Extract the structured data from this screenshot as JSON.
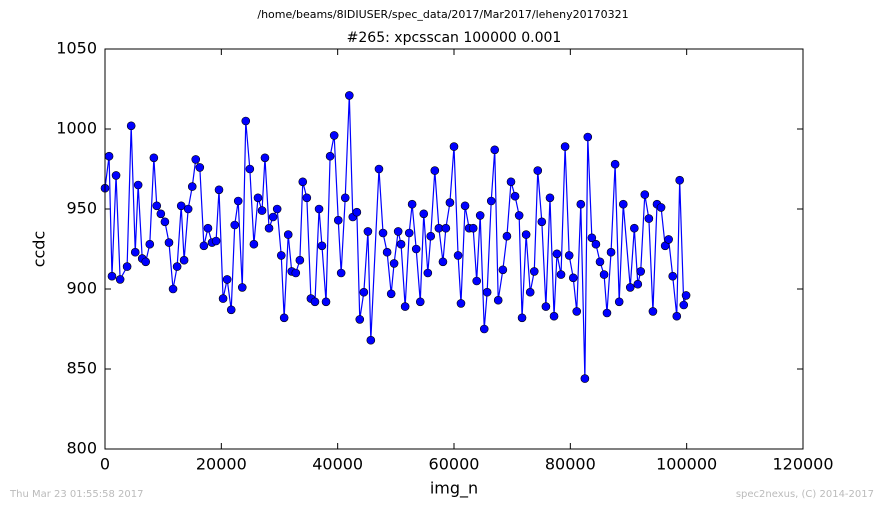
{
  "chart_data": {
    "type": "line",
    "suptitle": "/home/beams/8IDIUSER/spec_data/2017/Mar2017/leheny20170321",
    "title": "#265: xpcsscan 100000 0.001",
    "x_label": "img_n",
    "y_label": "ccdc",
    "annotations": [
      "Thu Mar 23 01:55:58 2017",
      "spec2nexus, (C) 2014-2017"
    ],
    "xlim": [
      0,
      120000
    ],
    "xticks": [
      0,
      20000,
      40000,
      60000,
      80000,
      100000,
      120000
    ],
    "ylim": [
      800,
      1050
    ],
    "yticks": [
      800,
      850,
      900,
      950,
      1000,
      1050
    ],
    "x": [
      0,
      700,
      1200,
      1900,
      2600,
      3800,
      4500,
      5200,
      5700,
      6400,
      7000,
      7700,
      8400,
      8900,
      9600,
      10300,
      11000,
      11700,
      12400,
      13100,
      13600,
      14300,
      15000,
      15600,
      16300,
      17000,
      17700,
      18400,
      19100,
      19600,
      20300,
      21000,
      21700,
      22300,
      22900,
      23600,
      24200,
      24900,
      25600,
      26300,
      27000,
      27500,
      28200,
      28900,
      29600,
      30300,
      30800,
      31500,
      32100,
      32800,
      33500,
      34000,
      34700,
      35400,
      36100,
      36800,
      37300,
      38000,
      38700,
      39400,
      40100,
      40600,
      41300,
      42000,
      42600,
      43300,
      43800,
      44500,
      45200,
      45700,
      47100,
      47800,
      48500,
      49200,
      49700,
      50400,
      50900,
      51600,
      52300,
      52800,
      53500,
      54200,
      54800,
      55500,
      56000,
      56700,
      57400,
      58100,
      58600,
      59300,
      60000,
      60700,
      61200,
      61900,
      62600,
      63300,
      63900,
      64500,
      65200,
      65700,
      66400,
      67000,
      67600,
      68400,
      69100,
      69800,
      70500,
      71200,
      71700,
      72400,
      73100,
      73800,
      74400,
      75100,
      75800,
      76500,
      77200,
      77700,
      78400,
      79100,
      79800,
      80500,
      81100,
      81800,
      82500,
      83000,
      83700,
      84400,
      85100,
      85800,
      86300,
      87000,
      87700,
      88400,
      89100,
      90300,
      91000,
      91600,
      92100,
      92800,
      93500,
      94200,
      94900,
      95600,
      96300,
      96900,
      97600,
      98300,
      98800,
      99500,
      99900
    ],
    "series": [
      {
        "color": "#0000ff",
        "values": [
          963,
          983,
          908,
          971,
          906,
          914,
          1002,
          923,
          965,
          919,
          917,
          928,
          982,
          952,
          947,
          942,
          929,
          900,
          914,
          952,
          918,
          950,
          964,
          981,
          976,
          927,
          938,
          929,
          930,
          962,
          894,
          906,
          887,
          940,
          955,
          901,
          1005,
          975,
          928,
          957,
          949,
          982,
          938,
          945,
          950,
          921,
          882,
          934,
          911,
          910,
          918,
          967,
          957,
          894,
          892,
          950,
          927,
          892,
          983,
          996,
          943,
          910,
          957,
          1021,
          945,
          948,
          881,
          898,
          936,
          868,
          975,
          935,
          923,
          897,
          916,
          936,
          928,
          889,
          935,
          953,
          925,
          892,
          947,
          910,
          933,
          974,
          938,
          917,
          938,
          954,
          989,
          921,
          891,
          952,
          938,
          938,
          905,
          946,
          875,
          898,
          955,
          987,
          893,
          912,
          933,
          967,
          958,
          946,
          882,
          934,
          898,
          911,
          974,
          942,
          889,
          957,
          883,
          922,
          909,
          989,
          921,
          907,
          886,
          953,
          844,
          995,
          932,
          928,
          917,
          909,
          885,
          923,
          978,
          892,
          953,
          901,
          938,
          903,
          911,
          959,
          944,
          886,
          953,
          951,
          927,
          931,
          908,
          883,
          968,
          890,
          896
        ]
      }
    ]
  }
}
